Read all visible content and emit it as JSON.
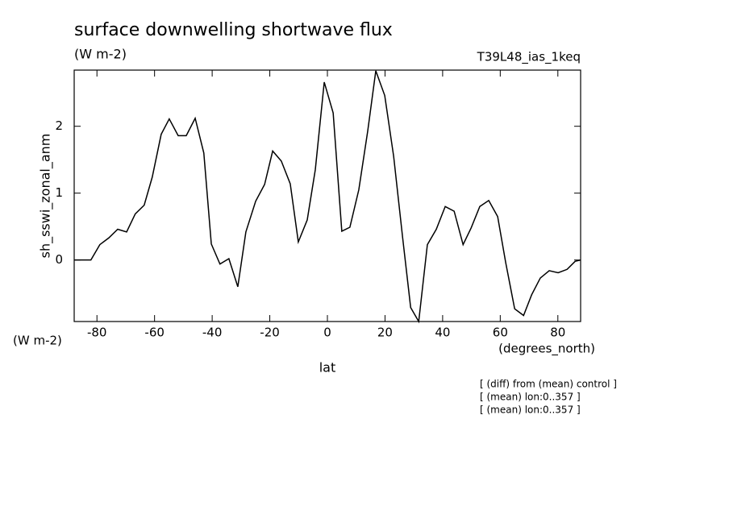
{
  "chart_data": {
    "type": "line",
    "title": "surface downwelling shortwave flux",
    "subtitle": "(W m-2)",
    "run_label": "T39L48_ias_1keq",
    "y_label": "sh_sswi_zonal_anm",
    "y_units": "(W m-2)",
    "x_label": "lat",
    "x_units": "(degrees_north)",
    "notes": [
      "[ (diff) from (mean) control ]",
      "[ (mean) lon:0..357 ]",
      "[ (mean) lon:0..357 ]"
    ],
    "x": [
      -87.9,
      -82.1,
      -79.0,
      -75.9,
      -72.8,
      -69.7,
      -66.7,
      -63.6,
      -60.8,
      -57.7,
      -54.9,
      -51.8,
      -49.0,
      -45.9,
      -42.9,
      -40.3,
      -37.3,
      -34.2,
      -31.1,
      -28.3,
      -24.9,
      -21.8,
      -19.0,
      -16.0,
      -12.9,
      -10.1,
      -7.0,
      -4.2,
      -1.1,
      2.0,
      5.0,
      7.8,
      10.9,
      14.0,
      16.8,
      19.9,
      23.0,
      26.1,
      28.9,
      31.7,
      34.7,
      37.8,
      40.9,
      44.0,
      47.1,
      49.9,
      52.9,
      56.0,
      59.1,
      61.9,
      65.0,
      68.1,
      70.9,
      73.9,
      77.0,
      80.1,
      83.2,
      86.0,
      87.9
    ],
    "series": [
      {
        "color": "#000000",
        "values": [
          0,
          0,
          0.23,
          0.33,
          0.46,
          0.42,
          0.69,
          0.82,
          1.24,
          1.88,
          2.11,
          1.86,
          1.86,
          2.12,
          1.6,
          0.24,
          -0.06,
          0.02,
          -0.4,
          0.42,
          0.88,
          1.13,
          1.63,
          1.48,
          1.14,
          0.27,
          0.6,
          1.35,
          2.66,
          2.2,
          0.43,
          0.49,
          1.05,
          1.93,
          2.83,
          2.46,
          1.55,
          0.34,
          -0.71,
          -0.92,
          0.23,
          0.46,
          0.8,
          0.73,
          0.23,
          0.48,
          0.8,
          0.89,
          0.65,
          -0.04,
          -0.73,
          -0.83,
          -0.52,
          -0.27,
          -0.16,
          -0.19,
          -0.14,
          -0.02,
          0
        ]
      }
    ],
    "xlim": [
      -87.9,
      87.9
    ],
    "ylim": [
      -0.92,
      2.84
    ],
    "xticks": [
      -80,
      -60,
      -40,
      -20,
      0,
      20,
      40,
      60,
      80
    ],
    "yticks": [
      0,
      1,
      2
    ]
  }
}
